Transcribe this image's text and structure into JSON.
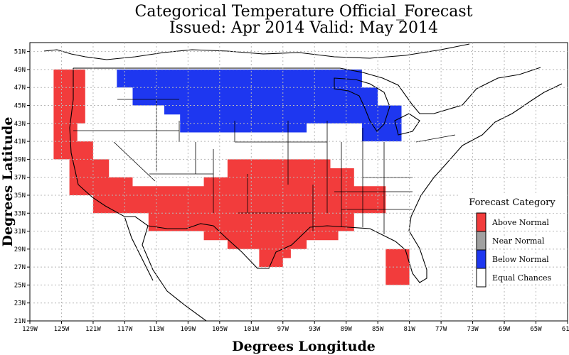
{
  "map": {
    "title_line1": "Categorical Temperature Official_Forecast",
    "title_line2": "Issued: Apr 2014 Valid: May 2014",
    "xlabel": "Degrees Longitude",
    "ylabel": "Degrees Latitude",
    "x_ticks": [
      "129W",
      "125W",
      "121W",
      "117W",
      "113W",
      "109W",
      "105W",
      "101W",
      "97W",
      "93W",
      "89W",
      "85W",
      "81W",
      "77W",
      "73W",
      "69W",
      "65W",
      "61W"
    ],
    "y_ticks": [
      "51N",
      "49N",
      "47N",
      "45N",
      "43N",
      "41N",
      "39N",
      "37N",
      "35N",
      "33N",
      "31N",
      "29N",
      "27N",
      "25N",
      "23N",
      "21N"
    ],
    "lon_range": [
      -129,
      -61
    ],
    "lat_range": [
      21,
      52
    ],
    "grid": true,
    "colors": {
      "above": "#f23c3c",
      "near": "#a0a0a0",
      "below": "#1e37f0",
      "equal": "#ffffff",
      "grid": "#b8b8b8",
      "border": "#000000"
    },
    "regions": [
      {
        "category": "above",
        "polygon": [
          [
            -126,
            49
          ],
          [
            -122,
            49
          ],
          [
            -122,
            43
          ],
          [
            -123,
            43
          ],
          [
            -123,
            41
          ],
          [
            -121,
            41
          ],
          [
            -121,
            39
          ],
          [
            -119,
            39
          ],
          [
            -119,
            37
          ],
          [
            -116,
            37
          ],
          [
            -116,
            36
          ],
          [
            -107,
            36
          ],
          [
            -107,
            37
          ],
          [
            -104,
            37
          ],
          [
            -104,
            39
          ],
          [
            -91,
            39
          ],
          [
            -91,
            38
          ],
          [
            -88,
            38
          ],
          [
            -88,
            36
          ],
          [
            -84,
            36
          ],
          [
            -84,
            33
          ],
          [
            -88,
            33
          ],
          [
            -88,
            31
          ],
          [
            -90,
            31
          ],
          [
            -90,
            30
          ],
          [
            -94,
            30
          ],
          [
            -94,
            29
          ],
          [
            -96,
            29
          ],
          [
            -96,
            28
          ],
          [
            -97,
            28
          ],
          [
            -97,
            27
          ],
          [
            -100,
            27
          ],
          [
            -100,
            29
          ],
          [
            -104,
            29
          ],
          [
            -104,
            30
          ],
          [
            -107,
            30
          ],
          [
            -107,
            31
          ],
          [
            -114,
            31
          ],
          [
            -114,
            33
          ],
          [
            -121,
            33
          ],
          [
            -121,
            35
          ],
          [
            -124,
            35
          ],
          [
            -124,
            39
          ],
          [
            -126,
            39
          ]
        ]
      },
      {
        "category": "above",
        "polygon": [
          [
            -84,
            29
          ],
          [
            -81,
            29
          ],
          [
            -81,
            25
          ],
          [
            -84,
            25
          ]
        ]
      },
      {
        "category": "below",
        "polygon": [
          [
            -118,
            49
          ],
          [
            -87,
            49
          ],
          [
            -87,
            47
          ],
          [
            -85,
            47
          ],
          [
            -85,
            45
          ],
          [
            -82,
            45
          ],
          [
            -82,
            41
          ],
          [
            -87,
            41
          ],
          [
            -87,
            43
          ],
          [
            -94,
            43
          ],
          [
            -94,
            42
          ],
          [
            -110,
            42
          ],
          [
            -110,
            44
          ],
          [
            -112,
            44
          ],
          [
            -112,
            45
          ],
          [
            -116,
            45
          ],
          [
            -116,
            47
          ],
          [
            -118,
            47
          ]
        ]
      }
    ]
  },
  "legend": {
    "title": "Forecast Category",
    "items": [
      {
        "label": "Above Normal",
        "color": "#f23c3c"
      },
      {
        "label": "Near Normal",
        "color": "#a0a0a0"
      },
      {
        "label": "Below Normal",
        "color": "#1e37f0"
      },
      {
        "label": "Equal Chances",
        "color": "#ffffff"
      }
    ]
  }
}
